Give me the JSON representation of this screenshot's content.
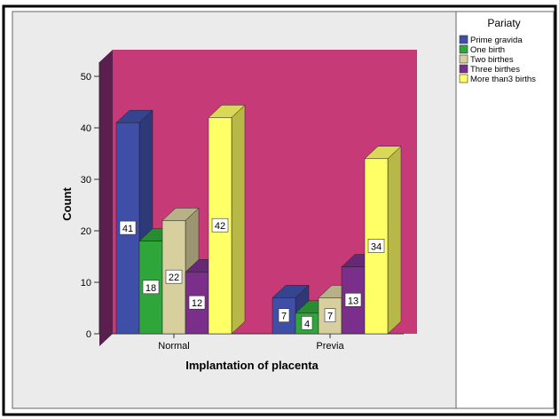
{
  "chart_data": {
    "type": "bar",
    "xlabel": "Implantation of placenta",
    "ylabel": "Count",
    "categories": [
      "Normal",
      "Previa"
    ],
    "series": [
      {
        "name": "Prime gravida",
        "values": [
          41,
          7
        ],
        "color": "#3f4fa8"
      },
      {
        "name": "One birth",
        "values": [
          18,
          4
        ],
        "color": "#2fa63a"
      },
      {
        "name": "Two birthes",
        "values": [
          22,
          7
        ],
        "color": "#d8cf9f"
      },
      {
        "name": "Three birthes",
        "values": [
          12,
          13
        ],
        "color": "#7a2f8a"
      },
      {
        "name": "More than3 births",
        "values": [
          42,
          34
        ],
        "color": "#ffff66"
      }
    ],
    "ylim": [
      0,
      50
    ],
    "yticks": [
      0,
      10,
      20,
      30,
      40,
      50
    ],
    "legend": {
      "title": "Pariaty",
      "position": "right"
    },
    "plot_background": "#c73a78",
    "side_wall_color": "#5a1f4e",
    "floor_color": "#4a1a40",
    "panel_background": "#ebebeb"
  }
}
